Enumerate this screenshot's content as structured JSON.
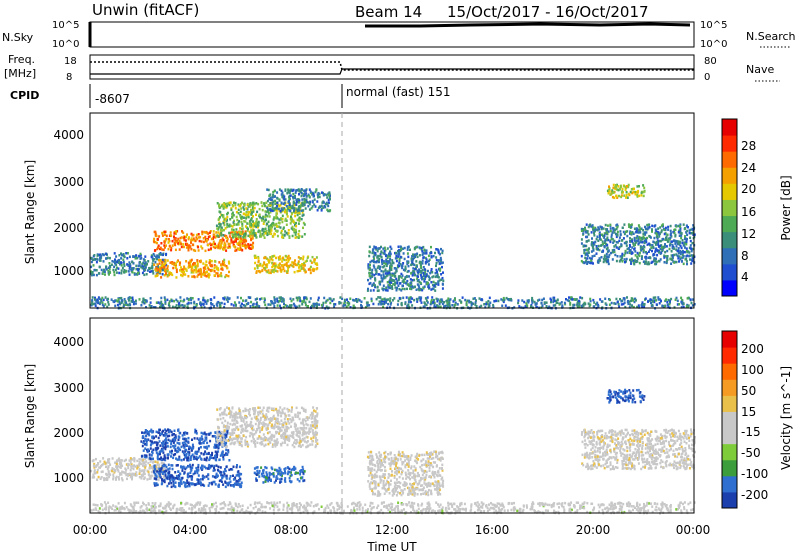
{
  "header": {
    "radar": "Unwin (fitACF)",
    "beam": "Beam 14",
    "dates": "15/Oct/2017 - 16/Oct/2017"
  },
  "top_panels": {
    "nsky_label": "N.Sky",
    "nsearch_label": "N.Search",
    "freq_label_line1": "Freq.",
    "freq_label_line2": "[MHz]",
    "nave_label": "Nave",
    "cpid_label": "CPID",
    "nsky_ticks": [
      "10^5",
      "10^0"
    ],
    "nsearch_ticks": [
      "10^5",
      "10^0"
    ],
    "freq_ticks": [
      "18",
      "8"
    ],
    "nave_ticks": [
      "80",
      "0"
    ],
    "cpid_segments": [
      {
        "label": "-8607",
        "start_hour": 0,
        "end_hour": 10
      },
      {
        "label": "normal (fast) 151",
        "start_hour": 10,
        "end_hour": 24
      }
    ]
  },
  "axes": {
    "x_label": "Time UT",
    "x_ticks": [
      "00:00",
      "04:00",
      "08:00",
      "12:00",
      "16:00",
      "20:00",
      "00:00"
    ],
    "y_label": "Slant Range [km]",
    "y_ticks": [
      "4000",
      "3000",
      "2000",
      "1000"
    ]
  },
  "power_colorbar": {
    "label": "Power [dB]",
    "ticks": [
      "28",
      "24",
      "20",
      "16",
      "12",
      "8",
      "4"
    ],
    "colors": [
      "#0000ff",
      "#1f4fd0",
      "#2e6fb8",
      "#3b8f7a",
      "#4faa55",
      "#8cc63f",
      "#e6c800",
      "#f4a000",
      "#ff6a00",
      "#ff2a00",
      "#e60000"
    ]
  },
  "velocity_colorbar": {
    "label": "Velocity [m s^-1]",
    "ticks": [
      "200",
      "100",
      "50",
      "15",
      "-15",
      "-50",
      "-100",
      "-200"
    ],
    "colors": [
      "#1c3fae",
      "#2f6fd0",
      "#3c9d3c",
      "#7fcc3a",
      "#c8c8c8",
      "#c8c8c8",
      "#e8c04a",
      "#f59a22",
      "#ff6a00",
      "#ff2a00",
      "#e60000"
    ]
  },
  "chart_data": [
    {
      "type": "heatmap",
      "title": "Power",
      "xlabel": "Time UT",
      "ylabel": "Slant Range [km]",
      "xlim_hours": [
        0,
        24
      ],
      "ylim_km": [
        180,
        4600
      ],
      "clim_db": [
        0,
        30
      ],
      "regions": [
        {
          "t0": 0.0,
          "t1": 3.0,
          "r0": 950,
          "r1": 1450,
          "value": 8
        },
        {
          "t0": 2.5,
          "t1": 6.5,
          "r0": 1500,
          "r1": 1950,
          "value": 22
        },
        {
          "t0": 2.5,
          "t1": 5.5,
          "r0": 900,
          "r1": 1300,
          "value": 20
        },
        {
          "t0": 5.0,
          "t1": 8.5,
          "r0": 1800,
          "r1": 2600,
          "value": 14
        },
        {
          "t0": 7.0,
          "t1": 9.5,
          "r0": 2400,
          "r1": 2900,
          "value": 8
        },
        {
          "t0": 6.5,
          "t1": 9.0,
          "r0": 1000,
          "r1": 1400,
          "value": 18
        },
        {
          "t0": 11.0,
          "t1": 14.0,
          "r0": 600,
          "r1": 1600,
          "value": 8
        },
        {
          "t0": 19.5,
          "t1": 24.0,
          "r0": 1200,
          "r1": 2100,
          "value": 8
        },
        {
          "t0": 20.5,
          "t1": 22.0,
          "r0": 2700,
          "r1": 3000,
          "value": 16
        },
        {
          "t0": 0.0,
          "t1": 24.0,
          "r0": 200,
          "r1": 450,
          "value": 8
        }
      ]
    },
    {
      "type": "heatmap",
      "title": "Velocity",
      "xlabel": "Time UT",
      "ylabel": "Slant Range [km]",
      "xlim_hours": [
        0,
        24
      ],
      "ylim_km": [
        180,
        4600
      ],
      "clim_ms": [
        -250,
        250
      ],
      "regions": [
        {
          "t0": 0.0,
          "t1": 3.0,
          "r0": 950,
          "r1": 1450,
          "value": 0
        },
        {
          "t0": 2.0,
          "t1": 5.5,
          "r0": 1400,
          "r1": 2100,
          "value": -200
        },
        {
          "t0": 2.5,
          "t1": 6.0,
          "r0": 800,
          "r1": 1300,
          "value": -200
        },
        {
          "t0": 5.0,
          "t1": 9.0,
          "r0": 1700,
          "r1": 2600,
          "value": 0
        },
        {
          "t0": 6.5,
          "t1": 8.5,
          "r0": 900,
          "r1": 1250,
          "value": -180
        },
        {
          "t0": 11.0,
          "t1": 14.0,
          "r0": 600,
          "r1": 1600,
          "value": 0
        },
        {
          "t0": 19.5,
          "t1": 24.0,
          "r0": 1200,
          "r1": 2100,
          "value": 0
        },
        {
          "t0": 20.5,
          "t1": 22.0,
          "r0": 2700,
          "r1": 3000,
          "value": -200
        },
        {
          "t0": 0.0,
          "t1": 24.0,
          "r0": 200,
          "r1": 450,
          "value": -40
        }
      ]
    }
  ]
}
